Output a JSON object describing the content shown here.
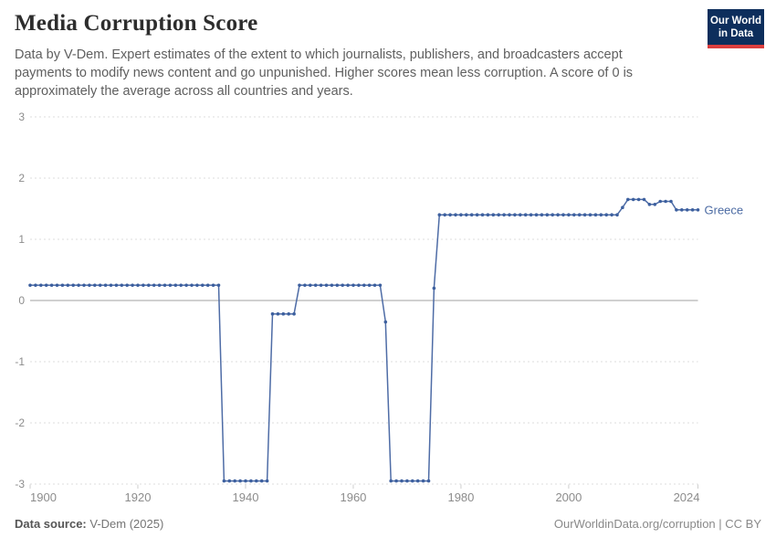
{
  "header": {
    "title": "Media Corruption Score",
    "subtitle": "Data by V-Dem. Expert estimates of the extent to which journalists, publishers, and broadcasters accept payments to modify news content and go unpunished. Higher scores mean less corruption. A score of 0 is approximately the average across all countries and years.",
    "logo": {
      "line1": "Our World",
      "line2": "in Data",
      "bg_color": "#0d2e5c",
      "stripe_color": "#dc3e3e"
    }
  },
  "chart_data": {
    "type": "line",
    "title": "Media Corruption Score",
    "xlabel": "",
    "ylabel": "",
    "xlim": [
      1900,
      2024
    ],
    "ylim": [
      -3,
      3
    ],
    "x_ticks": [
      1900,
      1920,
      1940,
      1960,
      1980,
      2000,
      2024
    ],
    "y_ticks": [
      3,
      2,
      1,
      0,
      -1,
      -2,
      -3
    ],
    "grid": "horizontal-dashed",
    "legend_position": "end-of-line-label",
    "colors": {
      "line": "#4e6ca6",
      "dots": "#3d609f",
      "entity_label": "#4c6ba3",
      "grid": "#dcdcdc",
      "zero_line": "#a0a0a0",
      "axis_text": "#8c8c8c",
      "tick_mark": "#cfcfcf"
    },
    "series": [
      {
        "name": "Greece",
        "points": [
          [
            1900,
            0.25
          ],
          [
            1901,
            0.25
          ],
          [
            1902,
            0.25
          ],
          [
            1903,
            0.25
          ],
          [
            1904,
            0.25
          ],
          [
            1905,
            0.25
          ],
          [
            1906,
            0.25
          ],
          [
            1907,
            0.25
          ],
          [
            1908,
            0.25
          ],
          [
            1909,
            0.25
          ],
          [
            1910,
            0.25
          ],
          [
            1911,
            0.25
          ],
          [
            1912,
            0.25
          ],
          [
            1913,
            0.25
          ],
          [
            1914,
            0.25
          ],
          [
            1915,
            0.25
          ],
          [
            1916,
            0.25
          ],
          [
            1917,
            0.25
          ],
          [
            1918,
            0.25
          ],
          [
            1919,
            0.25
          ],
          [
            1920,
            0.25
          ],
          [
            1921,
            0.25
          ],
          [
            1922,
            0.25
          ],
          [
            1923,
            0.25
          ],
          [
            1924,
            0.25
          ],
          [
            1925,
            0.25
          ],
          [
            1926,
            0.25
          ],
          [
            1927,
            0.25
          ],
          [
            1928,
            0.25
          ],
          [
            1929,
            0.25
          ],
          [
            1930,
            0.25
          ],
          [
            1931,
            0.25
          ],
          [
            1932,
            0.25
          ],
          [
            1933,
            0.25
          ],
          [
            1934,
            0.25
          ],
          [
            1935,
            0.25
          ],
          [
            1936,
            -2.95
          ],
          [
            1937,
            -2.95
          ],
          [
            1938,
            -2.95
          ],
          [
            1939,
            -2.95
          ],
          [
            1940,
            -2.95
          ],
          [
            1941,
            -2.95
          ],
          [
            1942,
            -2.95
          ],
          [
            1943,
            -2.95
          ],
          [
            1944,
            -2.95
          ],
          [
            1945,
            -0.22
          ],
          [
            1946,
            -0.22
          ],
          [
            1947,
            -0.22
          ],
          [
            1948,
            -0.22
          ],
          [
            1949,
            -0.22
          ],
          [
            1950,
            0.25
          ],
          [
            1951,
            0.25
          ],
          [
            1952,
            0.25
          ],
          [
            1953,
            0.25
          ],
          [
            1954,
            0.25
          ],
          [
            1955,
            0.25
          ],
          [
            1956,
            0.25
          ],
          [
            1957,
            0.25
          ],
          [
            1958,
            0.25
          ],
          [
            1959,
            0.25
          ],
          [
            1960,
            0.25
          ],
          [
            1961,
            0.25
          ],
          [
            1962,
            0.25
          ],
          [
            1963,
            0.25
          ],
          [
            1964,
            0.25
          ],
          [
            1965,
            0.25
          ],
          [
            1966,
            -0.35
          ],
          [
            1967,
            -2.95
          ],
          [
            1968,
            -2.95
          ],
          [
            1969,
            -2.95
          ],
          [
            1970,
            -2.95
          ],
          [
            1971,
            -2.95
          ],
          [
            1972,
            -2.95
          ],
          [
            1973,
            -2.95
          ],
          [
            1974,
            -2.95
          ],
          [
            1975,
            0.2
          ],
          [
            1976,
            1.4
          ],
          [
            1977,
            1.4
          ],
          [
            1978,
            1.4
          ],
          [
            1979,
            1.4
          ],
          [
            1980,
            1.4
          ],
          [
            1981,
            1.4
          ],
          [
            1982,
            1.4
          ],
          [
            1983,
            1.4
          ],
          [
            1984,
            1.4
          ],
          [
            1985,
            1.4
          ],
          [
            1986,
            1.4
          ],
          [
            1987,
            1.4
          ],
          [
            1988,
            1.4
          ],
          [
            1989,
            1.4
          ],
          [
            1990,
            1.4
          ],
          [
            1991,
            1.4
          ],
          [
            1992,
            1.4
          ],
          [
            1993,
            1.4
          ],
          [
            1994,
            1.4
          ],
          [
            1995,
            1.4
          ],
          [
            1996,
            1.4
          ],
          [
            1997,
            1.4
          ],
          [
            1998,
            1.4
          ],
          [
            1999,
            1.4
          ],
          [
            2000,
            1.4
          ],
          [
            2001,
            1.4
          ],
          [
            2002,
            1.4
          ],
          [
            2003,
            1.4
          ],
          [
            2004,
            1.4
          ],
          [
            2005,
            1.4
          ],
          [
            2006,
            1.4
          ],
          [
            2007,
            1.4
          ],
          [
            2008,
            1.4
          ],
          [
            2009,
            1.4
          ],
          [
            2010,
            1.52
          ],
          [
            2011,
            1.65
          ],
          [
            2012,
            1.65
          ],
          [
            2013,
            1.65
          ],
          [
            2014,
            1.65
          ],
          [
            2015,
            1.57
          ],
          [
            2016,
            1.57
          ],
          [
            2017,
            1.62
          ],
          [
            2018,
            1.62
          ],
          [
            2019,
            1.62
          ],
          [
            2020,
            1.48
          ],
          [
            2021,
            1.48
          ],
          [
            2022,
            1.48
          ],
          [
            2023,
            1.48
          ],
          [
            2024,
            1.48
          ]
        ]
      }
    ]
  },
  "footer": {
    "source_label": "Data source:",
    "source_value": "V-Dem (2025)",
    "credit": "OurWorldinData.org/corruption | CC BY"
  }
}
